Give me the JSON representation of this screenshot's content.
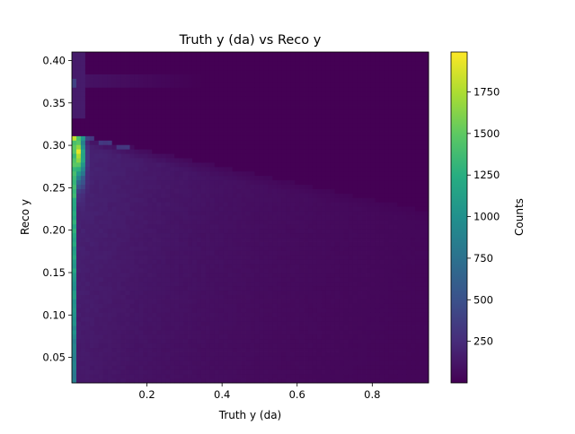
{
  "chart_data": {
    "type": "heatmap",
    "title": "Truth y (da) vs Reco y",
    "xlabel": "Truth y (da)",
    "ylabel": "Reco y",
    "xlim": [
      0.0,
      0.95
    ],
    "ylim": [
      0.02,
      0.41
    ],
    "x_ticks": [
      {
        "value": 0.2,
        "label": "0.2"
      },
      {
        "value": 0.4,
        "label": "0.4"
      },
      {
        "value": 0.6,
        "label": "0.6"
      },
      {
        "value": 0.8,
        "label": "0.8"
      }
    ],
    "y_ticks": [
      {
        "value": 0.05,
        "label": "0.05"
      },
      {
        "value": 0.1,
        "label": "0.10"
      },
      {
        "value": 0.15,
        "label": "0.15"
      },
      {
        "value": 0.2,
        "label": "0.20"
      },
      {
        "value": 0.25,
        "label": "0.25"
      },
      {
        "value": 0.3,
        "label": "0.30"
      },
      {
        "value": 0.35,
        "label": "0.35"
      },
      {
        "value": 0.4,
        "label": "0.40"
      }
    ],
    "colorbar": {
      "label": "Counts",
      "colormap": "viridis",
      "range": [
        0,
        1990
      ],
      "ticks": [
        {
          "value": 250,
          "label": "250"
        },
        {
          "value": 500,
          "label": "500"
        },
        {
          "value": 750,
          "label": "750"
        },
        {
          "value": 1000,
          "label": "1000"
        },
        {
          "value": 1250,
          "label": "1250"
        },
        {
          "value": 1500,
          "label": "1500"
        },
        {
          "value": 1750,
          "label": "1750"
        }
      ]
    },
    "bins": {
      "nx": 80,
      "ny": 75
    },
    "regions": {
      "upper_edge": [
        {
          "x": 0.0,
          "y": 0.312
        },
        {
          "x": 0.05,
          "y": 0.309
        },
        {
          "x": 0.95,
          "y": 0.222
        }
      ],
      "peak": {
        "x": 0.02,
        "y": 0.29,
        "counts": 1990
      },
      "left_column_counts": 1400,
      "band_near_0_375": {
        "y": 0.375,
        "counts": 400
      },
      "grid": false
    }
  }
}
